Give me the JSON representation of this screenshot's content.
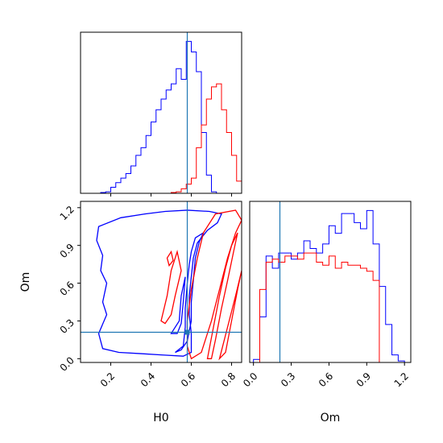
{
  "chart_data": [
    {
      "panel": "H0 marginal",
      "type": "step-histogram",
      "xlim": [
        0.05,
        0.85
      ],
      "ylim": [
        0,
        1.06
      ],
      "bin_edges": [
        0.05,
        0.075,
        0.1,
        0.125,
        0.15,
        0.175,
        0.2,
        0.225,
        0.25,
        0.275,
        0.3,
        0.325,
        0.35,
        0.375,
        0.4,
        0.425,
        0.45,
        0.475,
        0.5,
        0.525,
        0.55,
        0.575,
        0.6,
        0.625,
        0.65,
        0.675,
        0.7,
        0.725,
        0.75,
        0.775,
        0.8,
        0.825,
        0.85
      ],
      "series": [
        {
          "color": "#0000ff",
          "values": [
            0,
            0,
            0,
            0,
            0.005,
            0.01,
            0.04,
            0.07,
            0.1,
            0.13,
            0.18,
            0.25,
            0.3,
            0.38,
            0.47,
            0.55,
            0.62,
            0.68,
            0.72,
            0.82,
            0.75,
            1.0,
            0.93,
            0.8,
            0.4,
            0.12,
            0.01,
            0,
            0,
            0,
            0,
            0
          ]
        },
        {
          "color": "#ff0000",
          "values": [
            0,
            0,
            0,
            0,
            0,
            0,
            0,
            0,
            0,
            0,
            0,
            0,
            0,
            0,
            0,
            0,
            0,
            0,
            0.005,
            0.01,
            0.03,
            0.06,
            0.1,
            0.3,
            0.45,
            0.62,
            0.7,
            0.72,
            0.55,
            0.4,
            0.25,
            0.08
          ]
        }
      ],
      "truth_line_x": 0.58
    },
    {
      "panel": "H0 vs Om joint",
      "type": "contour",
      "xlim": [
        0.05,
        0.85
      ],
      "ylim": [
        -0.03,
        1.25
      ],
      "xticks": [
        "0.2",
        "0.4",
        "0.6",
        "0.8"
      ],
      "yticks": [
        "0.0",
        "0.3",
        "0.6",
        "0.9",
        "1.2"
      ],
      "xlabel": "H0",
      "ylabel": "Om",
      "truth_point": [
        0.58,
        0.21
      ],
      "contours": [
        {
          "color": "#0000ff",
          "points": [
            [
              0.14,
              1.05
            ],
            [
              0.25,
              1.12
            ],
            [
              0.37,
              1.15
            ],
            [
              0.47,
              1.17
            ],
            [
              0.58,
              1.18
            ],
            [
              0.69,
              1.17
            ],
            [
              0.75,
              1.15
            ],
            [
              0.73,
              1.08
            ],
            [
              0.68,
              1.02
            ],
            [
              0.63,
              0.92
            ],
            [
              0.61,
              0.8
            ],
            [
              0.6,
              0.65
            ],
            [
              0.59,
              0.5
            ],
            [
              0.59,
              0.35
            ],
            [
              0.6,
              0.2
            ],
            [
              0.6,
              0.05
            ],
            [
              0.56,
              0.02
            ],
            [
              0.45,
              0.03
            ],
            [
              0.35,
              0.04
            ],
            [
              0.24,
              0.05
            ],
            [
              0.16,
              0.08
            ],
            [
              0.14,
              0.2
            ],
            [
              0.18,
              0.35
            ],
            [
              0.16,
              0.45
            ],
            [
              0.18,
              0.6
            ],
            [
              0.15,
              0.7
            ],
            [
              0.16,
              0.82
            ],
            [
              0.13,
              0.94
            ],
            [
              0.14,
              1.05
            ]
          ]
        },
        {
          "color": "#0000ff",
          "points": [
            [
              0.52,
              0.05
            ],
            [
              0.56,
              0.1
            ],
            [
              0.57,
              0.25
            ],
            [
              0.57,
              0.4
            ],
            [
              0.58,
              0.6
            ],
            [
              0.59,
              0.75
            ],
            [
              0.6,
              0.85
            ],
            [
              0.62,
              0.96
            ],
            [
              0.66,
              1.0
            ],
            [
              0.64,
              0.93
            ],
            [
              0.62,
              0.8
            ],
            [
              0.61,
              0.62
            ],
            [
              0.6,
              0.45
            ],
            [
              0.6,
              0.3
            ],
            [
              0.58,
              0.14
            ],
            [
              0.55,
              0.07
            ],
            [
              0.52,
              0.05
            ]
          ]
        },
        {
          "color": "#0000ff",
          "points": [
            [
              0.5,
              0.2
            ],
            [
              0.54,
              0.3
            ],
            [
              0.55,
              0.5
            ],
            [
              0.57,
              0.65
            ],
            [
              0.56,
              0.45
            ],
            [
              0.55,
              0.28
            ],
            [
              0.53,
              0.2
            ],
            [
              0.5,
              0.2
            ]
          ]
        },
        {
          "color": "#ff0000",
          "points": [
            [
              0.6,
              0.0
            ],
            [
              0.65,
              0.05
            ],
            [
              0.7,
              0.3
            ],
            [
              0.74,
              0.55
            ],
            [
              0.78,
              0.8
            ],
            [
              0.82,
              1.0
            ],
            [
              0.85,
              1.1
            ],
            [
              0.82,
              1.18
            ],
            [
              0.72,
              1.15
            ],
            [
              0.66,
              1.0
            ],
            [
              0.63,
              0.8
            ],
            [
              0.6,
              0.55
            ],
            [
              0.58,
              0.3
            ],
            [
              0.58,
              0.1
            ],
            [
              0.6,
              0.0
            ]
          ]
        },
        {
          "color": "#ff0000",
          "points": [
            [
              0.68,
              0.0
            ],
            [
              0.71,
              0.25
            ],
            [
              0.74,
              0.5
            ],
            [
              0.77,
              0.72
            ],
            [
              0.8,
              0.9
            ],
            [
              0.83,
              1.0
            ],
            [
              0.81,
              0.85
            ],
            [
              0.78,
              0.62
            ],
            [
              0.75,
              0.4
            ],
            [
              0.72,
              0.15
            ],
            [
              0.7,
              0.0
            ],
            [
              0.68,
              0.0
            ]
          ]
        },
        {
          "color": "#ff0000",
          "points": [
            [
              0.74,
              0.0
            ],
            [
              0.78,
              0.25
            ],
            [
              0.82,
              0.5
            ],
            [
              0.85,
              0.7
            ],
            [
              0.83,
              0.55
            ],
            [
              0.8,
              0.3
            ],
            [
              0.77,
              0.05
            ],
            [
              0.74,
              0.0
            ]
          ]
        },
        {
          "color": "#ff0000",
          "points": [
            [
              0.45,
              0.3
            ],
            [
              0.48,
              0.5
            ],
            [
              0.5,
              0.7
            ],
            [
              0.53,
              0.85
            ],
            [
              0.55,
              0.7
            ],
            [
              0.52,
              0.5
            ],
            [
              0.5,
              0.35
            ],
            [
              0.47,
              0.28
            ],
            [
              0.45,
              0.3
            ]
          ]
        },
        {
          "color": "#ff0000",
          "points": [
            [
              0.48,
              0.8
            ],
            [
              0.5,
              0.85
            ],
            [
              0.51,
              0.78
            ],
            [
              0.49,
              0.74
            ],
            [
              0.48,
              0.8
            ]
          ]
        }
      ]
    },
    {
      "panel": "Om marginal",
      "type": "step-histogram",
      "xlim": [
        -0.03,
        1.25
      ],
      "ylim": [
        0,
        1.06
      ],
      "xticks": [
        "0.0",
        "0.3",
        "0.6",
        "0.9",
        "1.2"
      ],
      "xlabel": "Om",
      "bin_edges": [
        0.0,
        0.05,
        0.1,
        0.15,
        0.2,
        0.25,
        0.3,
        0.35,
        0.4,
        0.45,
        0.5,
        0.55,
        0.6,
        0.65,
        0.7,
        0.75,
        0.8,
        0.85,
        0.9,
        0.95,
        1.0,
        1.05,
        1.1,
        1.15,
        1.2
      ],
      "series": [
        {
          "color": "#0000ff",
          "values": [
            0.02,
            0.3,
            0.7,
            0.62,
            0.72,
            0.72,
            0.68,
            0.72,
            0.8,
            0.75,
            0.72,
            0.78,
            0.9,
            0.85,
            0.98,
            0.98,
            0.92,
            0.88,
            1.0,
            0.78,
            0.5,
            0.25,
            0.05,
            0.01
          ]
        },
        {
          "color": "#ff0000",
          "values": [
            0.0,
            0.48,
            0.66,
            0.68,
            0.66,
            0.7,
            0.7,
            0.68,
            0.72,
            0.72,
            0.66,
            0.64,
            0.7,
            0.62,
            0.66,
            0.64,
            0.64,
            0.62,
            0.6,
            0.54,
            0.0,
            0.0,
            0.0,
            0.0
          ]
        }
      ],
      "truth_line_x": 0.21
    }
  ],
  "colors": {
    "series_a": "#0000ff",
    "series_b": "#ff0000",
    "truth": "#1f77b4"
  }
}
